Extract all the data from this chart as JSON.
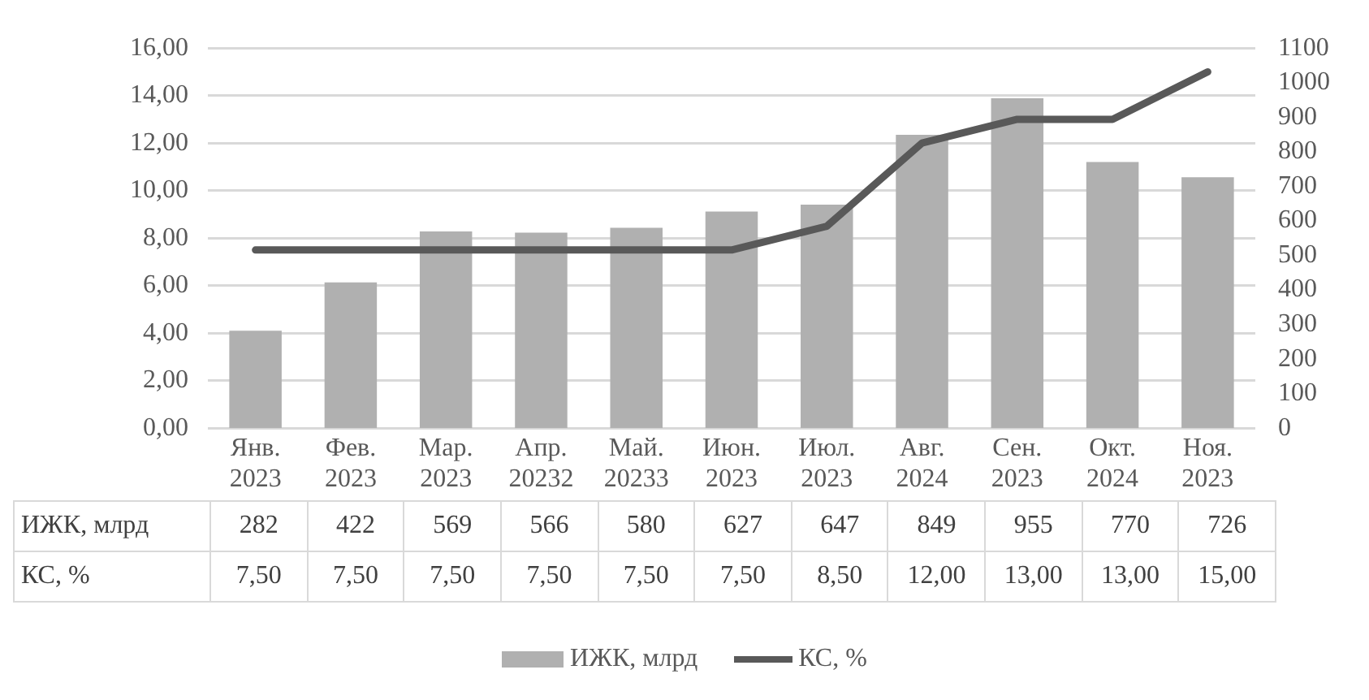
{
  "chart_data": {
    "type": "bar",
    "categories": [
      "Янв. 2023",
      "Фев. 2023",
      "Мар. 2023",
      "Апр. 20232",
      "Май. 20233",
      "Июн. 2023",
      "Июл. 2023",
      "Авг. 2024",
      "Сен. 2023",
      "Окт. 2024",
      "Ноя. 2023"
    ],
    "series": [
      {
        "name": "ИЖК, млрд",
        "axis": "y2",
        "color": "#b0b0b0",
        "values": [
          282,
          422,
          569,
          566,
          580,
          627,
          647,
          849,
          955,
          770,
          726
        ],
        "value_labels": [
          "282",
          "422",
          "569",
          "566",
          "580",
          "627",
          "647",
          "849",
          "955",
          "770",
          "726"
        ]
      },
      {
        "name": "КС, %",
        "type": "line",
        "color": "#595959",
        "values": [
          7.5,
          7.5,
          7.5,
          7.5,
          7.5,
          7.5,
          8.5,
          12,
          13,
          13,
          15
        ],
        "value_labels": [
          "7,50",
          "7,50",
          "7,50",
          "7,50",
          "7,50",
          "7,50",
          "8,50",
          "12,00",
          "13,00",
          "13,00",
          "15,00"
        ]
      }
    ],
    "ylim": [
      0,
      16
    ],
    "yticks": [
      {
        "value": 0,
        "label": "0,00"
      },
      {
        "value": 2,
        "label": "2,00"
      },
      {
        "value": 4,
        "label": "4,00"
      },
      {
        "value": 6,
        "label": "6,00"
      },
      {
        "value": 8,
        "label": "8,00"
      },
      {
        "value": 10,
        "label": "10,00"
      },
      {
        "value": 12,
        "label": "12,00"
      },
      {
        "value": 14,
        "label": "14,00"
      },
      {
        "value": 16,
        "label": "16,00"
      }
    ],
    "y2lim": [
      0,
      1100
    ],
    "y2ticks": [
      0,
      100,
      200,
      300,
      400,
      500,
      600,
      700,
      800,
      900,
      1000,
      1100
    ],
    "grid": "y",
    "legend": "bottom",
    "marker": "none"
  }
}
